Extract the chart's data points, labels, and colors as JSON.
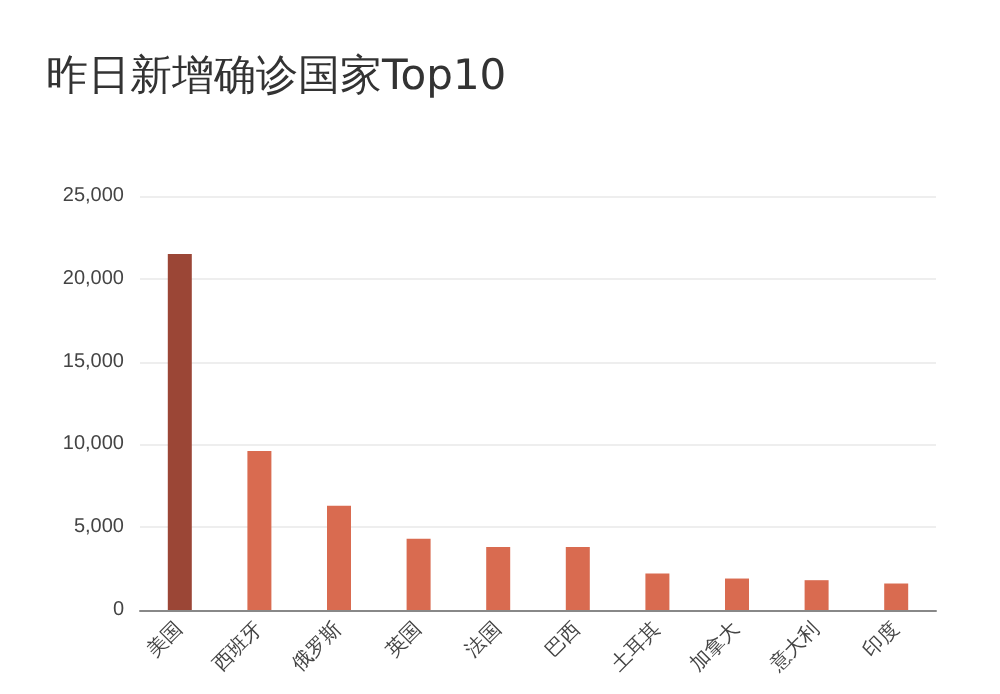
{
  "chart_data": {
    "type": "bar",
    "title": "昨日新增确诊国家Top10",
    "categories": [
      "美国",
      "西班牙",
      "俄罗斯",
      "英国",
      "法国",
      "巴西",
      "土耳其",
      "加拿大",
      "意大利",
      "印度"
    ],
    "values": [
      21500,
      9600,
      6300,
      4300,
      3800,
      3800,
      2200,
      1900,
      1800,
      1600
    ],
    "colors": [
      "#9b4636",
      "#d96b50",
      "#d96b50",
      "#d96b50",
      "#d96b50",
      "#d96b50",
      "#d96b50",
      "#d96b50",
      "#d96b50",
      "#d96b50"
    ],
    "ylim": [
      0,
      25000
    ],
    "yticks": [
      0,
      {
        "value": 5000,
        "label": "5,000"
      },
      {
        "value": 10000,
        "label": "10,000"
      },
      {
        "value": 15000,
        "label": "15,000"
      },
      {
        "value": 20000,
        "label": "20,000"
      },
      {
        "value": 25000,
        "label": "25,000"
      }
    ],
    "grid": "y"
  }
}
